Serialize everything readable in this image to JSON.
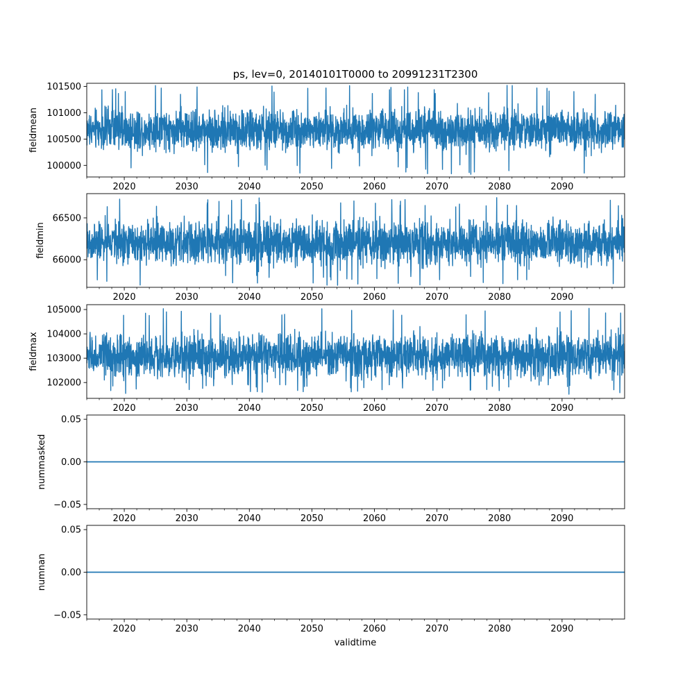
{
  "title": "ps, lev=0, 20140101T0000 to 20991231T2300",
  "xlabel": "validtime",
  "line_color": "#1f77b4",
  "chart_data": [
    {
      "type": "line",
      "ylabel": "fieldmean",
      "xlim": [
        2014.0,
        2100.0
      ],
      "ylim": [
        99780,
        101560
      ],
      "x_ticks": [
        2020,
        2030,
        2040,
        2050,
        2060,
        2070,
        2080,
        2090
      ],
      "y_ticks": [
        100000,
        100500,
        101000,
        101500
      ],
      "typical_range": [
        100150,
        101200
      ],
      "extreme_min": 99830,
      "extreme_max": 101520,
      "series": [
        {
          "x_range": [
            2014.0,
            2100.0
          ],
          "kind": "dense_noise"
        }
      ]
    },
    {
      "type": "line",
      "ylabel": "fieldmin",
      "xlim": [
        2014.0,
        2100.0
      ],
      "ylim": [
        65670,
        66790
      ],
      "x_ticks": [
        2020,
        2030,
        2040,
        2050,
        2060,
        2070,
        2080,
        2090
      ],
      "y_ticks": [
        66000,
        66500
      ],
      "typical_range": [
        65850,
        66550
      ],
      "extreme_min": 65690,
      "extreme_max": 66750,
      "series": [
        {
          "x_range": [
            2014.0,
            2100.0
          ],
          "kind": "dense_noise"
        }
      ]
    },
    {
      "type": "line",
      "ylabel": "fieldmax",
      "xlim": [
        2014.0,
        2100.0
      ],
      "ylim": [
        101350,
        105200
      ],
      "x_ticks": [
        2020,
        2030,
        2040,
        2050,
        2060,
        2070,
        2080,
        2090
      ],
      "y_ticks": [
        102000,
        103000,
        104000,
        105000
      ],
      "typical_range": [
        101900,
        104300
      ],
      "extreme_min": 101500,
      "extreme_max": 105050,
      "series": [
        {
          "x_range": [
            2014.0,
            2100.0
          ],
          "kind": "dense_noise"
        }
      ]
    },
    {
      "type": "line",
      "ylabel": "nummasked",
      "xlim": [
        2014.0,
        2100.0
      ],
      "ylim": [
        -0.055,
        0.055
      ],
      "x_ticks": [
        2020,
        2030,
        2040,
        2050,
        2060,
        2070,
        2080,
        2090
      ],
      "y_ticks": [
        -0.05,
        0.0,
        0.05
      ],
      "y_tick_labels": [
        "−0.05",
        "0.00",
        "0.05"
      ],
      "series": [
        {
          "x": [
            2014.0,
            2100.0
          ],
          "y": [
            0,
            0
          ],
          "kind": "constant"
        }
      ]
    },
    {
      "type": "line",
      "ylabel": "numnan",
      "xlim": [
        2014.0,
        2100.0
      ],
      "ylim": [
        -0.055,
        0.055
      ],
      "x_ticks": [
        2020,
        2030,
        2040,
        2050,
        2060,
        2070,
        2080,
        2090
      ],
      "y_ticks": [
        -0.05,
        0.0,
        0.05
      ],
      "y_tick_labels": [
        "−0.05",
        "0.00",
        "0.05"
      ],
      "series": [
        {
          "x": [
            2014.0,
            2100.0
          ],
          "y": [
            0,
            0
          ],
          "kind": "constant"
        }
      ]
    }
  ]
}
